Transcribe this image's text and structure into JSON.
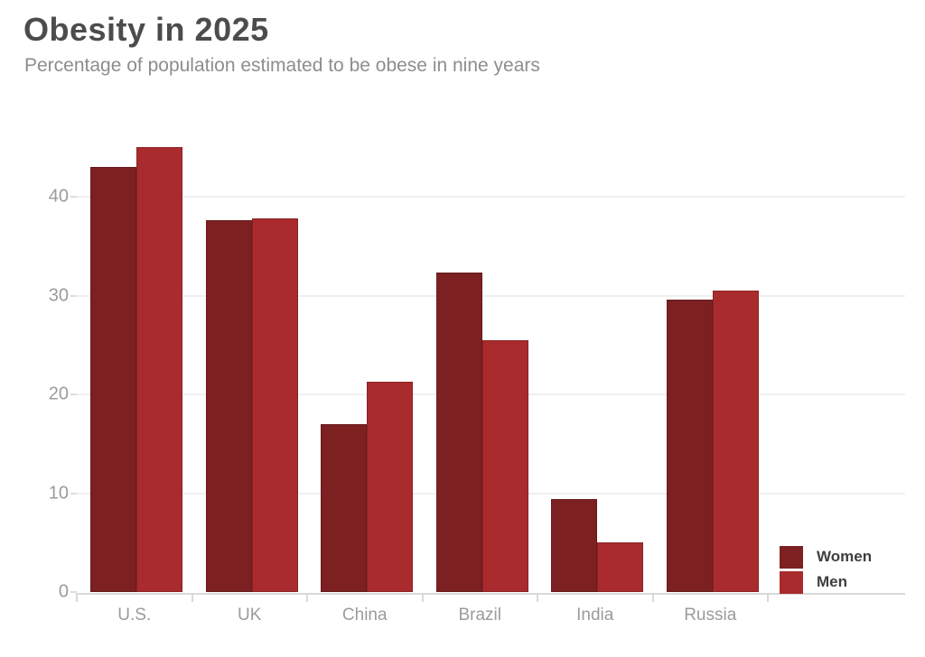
{
  "header": {
    "title": "Obesity in 2025",
    "subtitle": "Percentage of population estimated to be obese in nine years"
  },
  "chart_data": {
    "type": "bar",
    "title": "Obesity in 2025",
    "subtitle": "Percentage of population estimated to be obese in nine years",
    "categories": [
      "U.S.",
      "UK",
      "China",
      "Brazil",
      "India",
      "Russia"
    ],
    "series": [
      {
        "name": "Women",
        "color": "#7c2022",
        "border_color": "#671a1d",
        "values": [
          43,
          37.6,
          17,
          32.3,
          9.4,
          29.6
        ]
      },
      {
        "name": "Men",
        "color": "#a92b2d",
        "border_color": "#8b2325",
        "values": [
          45,
          37.8,
          21.3,
          25.5,
          5,
          30.5
        ]
      }
    ],
    "xlabel": "",
    "ylabel": "",
    "ylim": [
      0,
      47.2
    ],
    "yticks": [
      0,
      10,
      20,
      30,
      40
    ],
    "grid": true,
    "legend_position": "bottom-right"
  },
  "colors": {
    "background": "#ffffff",
    "title_text": "#4c4c4c",
    "subtitle_text": "#8d8d8d",
    "axis_label_text": "#9b9b9b",
    "legend_text": "#3f3f3f",
    "gridline": "#efefef",
    "axis_line": "#d9d9d9"
  }
}
